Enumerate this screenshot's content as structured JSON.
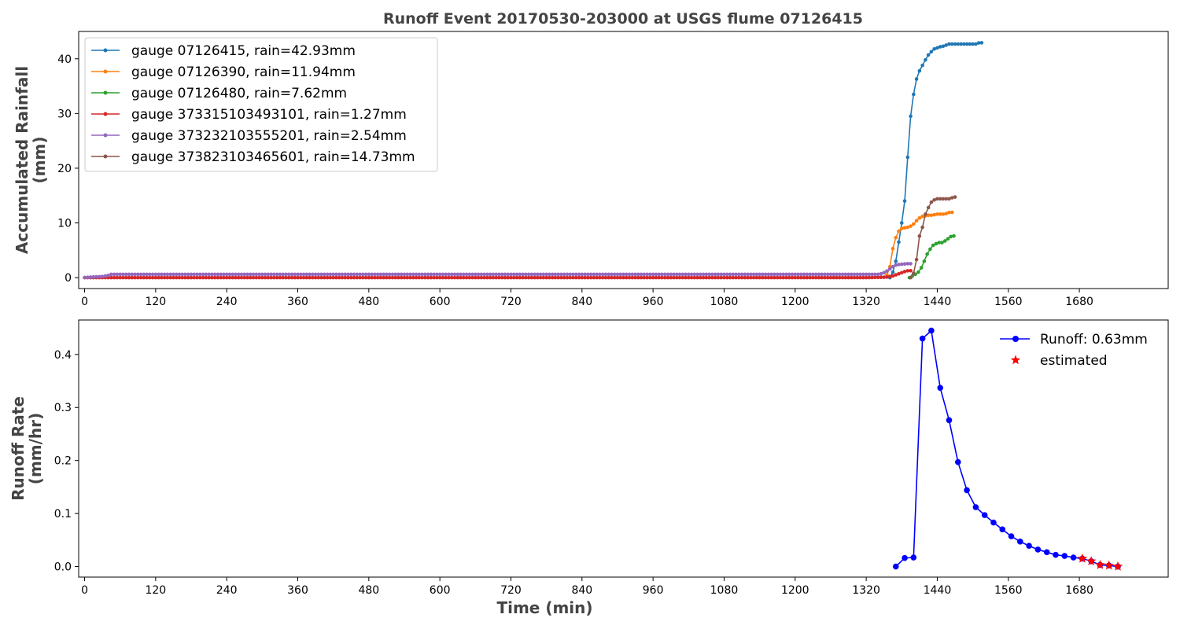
{
  "title": "Runoff Event 20170530-203000 at USGS flume 07126415",
  "chart_data": [
    {
      "type": "line",
      "ylabel_lines": [
        "Accumulated Rainfall",
        "(mm)"
      ],
      "xlim": [
        -10,
        1830
      ],
      "ylim": [
        -2,
        45
      ],
      "xticks": [
        0,
        120,
        240,
        360,
        480,
        600,
        720,
        840,
        960,
        1080,
        1200,
        1320,
        1440,
        1560,
        1680
      ],
      "yticks": [
        0,
        10,
        20,
        30,
        40
      ],
      "legend_position": "upper-left",
      "series": [
        {
          "name": "gauge 07126415, rain=42.93mm",
          "color": "#1f77b4",
          "x": [
            1360,
            1365,
            1370,
            1375,
            1380,
            1385,
            1390,
            1395,
            1400,
            1405,
            1410,
            1415,
            1420,
            1425,
            1430,
            1435,
            1440,
            1445,
            1450,
            1455,
            1460,
            1465,
            1470,
            1475,
            1480,
            1485,
            1490,
            1495,
            1500,
            1505,
            1510,
            1515
          ],
          "y": [
            0,
            1,
            3,
            6.5,
            10,
            14,
            22,
            29.5,
            33.5,
            36.3,
            37.8,
            38.8,
            39.8,
            40.7,
            41.3,
            41.8,
            42.0,
            42.2,
            42.3,
            42.5,
            42.7,
            42.7,
            42.7,
            42.7,
            42.7,
            42.7,
            42.7,
            42.7,
            42.7,
            42.7,
            42.9,
            42.93
          ]
        },
        {
          "name": "gauge 07126390, rain=11.94mm",
          "color": "#ff7f0e",
          "x": [
            1355,
            1360,
            1365,
            1370,
            1375,
            1380,
            1385,
            1390,
            1395,
            1400,
            1405,
            1410,
            1415,
            1420,
            1425,
            1430,
            1435,
            1440,
            1445,
            1450,
            1455,
            1460,
            1465
          ],
          "y": [
            0.5,
            2,
            5.3,
            7.3,
            8.5,
            9.0,
            9.1,
            9.2,
            9.4,
            9.8,
            10.4,
            10.9,
            11.2,
            11.3,
            11.4,
            11.4,
            11.5,
            11.6,
            11.6,
            11.6,
            11.7,
            11.9,
            11.94
          ]
        },
        {
          "name": "gauge 07126480, rain=7.62mm",
          "color": "#2ca02c",
          "x": [
            1393,
            1398,
            1403,
            1408,
            1413,
            1418,
            1423,
            1428,
            1433,
            1438,
            1443,
            1448,
            1453,
            1458,
            1463,
            1468
          ],
          "y": [
            0,
            0.3,
            0.6,
            1.0,
            1.8,
            3.0,
            4.3,
            5.2,
            5.9,
            6.2,
            6.4,
            6.4,
            6.7,
            7.1,
            7.5,
            7.62
          ]
        },
        {
          "name": "gauge 373315103493101, rain=1.27mm",
          "color": "#d62728",
          "x": [
            0,
            1320,
            1345,
            1355,
            1360,
            1365,
            1370,
            1375,
            1380,
            1385,
            1390,
            1395
          ],
          "y": [
            0,
            0,
            0.05,
            0.1,
            0.2,
            0.3,
            0.5,
            0.7,
            0.9,
            1.1,
            1.25,
            1.27
          ]
        },
        {
          "name": "gauge 373232103555201, rain=2.54mm",
          "color": "#9467bd",
          "x": [
            0,
            10,
            20,
            30,
            40,
            45,
            1340,
            1345,
            1350,
            1355,
            1360,
            1365,
            1370,
            1375,
            1380,
            1385,
            1390,
            1395
          ],
          "y": [
            0,
            0.1,
            0.15,
            0.2,
            0.4,
            0.6,
            0.6,
            0.7,
            0.9,
            1.2,
            1.6,
            2.0,
            2.3,
            2.4,
            2.45,
            2.5,
            2.54,
            2.54
          ]
        },
        {
          "name": "gauge 373823103465601, rain=14.73mm",
          "color": "#8c564b",
          "x": [
            1395,
            1400,
            1405,
            1410,
            1415,
            1420,
            1425,
            1430,
            1435,
            1440,
            1445,
            1450,
            1455,
            1460,
            1465,
            1470
          ],
          "y": [
            0,
            0.8,
            3.3,
            7.6,
            9.2,
            11.6,
            12.8,
            13.8,
            14.2,
            14.4,
            14.4,
            14.4,
            14.4,
            14.4,
            14.6,
            14.73
          ]
        }
      ]
    },
    {
      "type": "line",
      "xlabel": "Time (min)",
      "ylabel_lines": [
        "Runoff Rate",
        "(mm/hr)"
      ],
      "xlim": [
        -10,
        1830
      ],
      "ylim": [
        -0.02,
        0.465
      ],
      "xticks": [
        0,
        120,
        240,
        360,
        480,
        600,
        720,
        840,
        960,
        1080,
        1200,
        1320,
        1440,
        1560,
        1680
      ],
      "yticks": [
        0.0,
        0.1,
        0.2,
        0.3,
        0.4
      ],
      "ytick_labels": [
        "0.0",
        "0.1",
        "0.2",
        "0.3",
        "0.4"
      ],
      "legend_position": "upper-right",
      "series": [
        {
          "name": "Runoff: 0.63mm",
          "color": "#0000ff",
          "x": [
            1370,
            1385,
            1400,
            1415,
            1430,
            1445,
            1460,
            1475,
            1490,
            1505,
            1520,
            1535,
            1550,
            1565,
            1580,
            1595,
            1610,
            1625,
            1640,
            1655,
            1670,
            1685,
            1700,
            1715,
            1730,
            1745
          ],
          "y": [
            0.0,
            0.016,
            0.017,
            0.43,
            0.445,
            0.337,
            0.276,
            0.197,
            0.144,
            0.112,
            0.097,
            0.083,
            0.07,
            0.057,
            0.047,
            0.039,
            0.032,
            0.027,
            0.022,
            0.02,
            0.017,
            0.015,
            0.01,
            0.003,
            0.002,
            0.0
          ]
        },
        {
          "name": "estimated",
          "color": "#ff0000",
          "marker": "star",
          "x": [
            1685,
            1700,
            1715,
            1730,
            1745
          ],
          "y": [
            0.015,
            0.01,
            0.003,
            0.002,
            0.0
          ]
        }
      ]
    }
  ]
}
